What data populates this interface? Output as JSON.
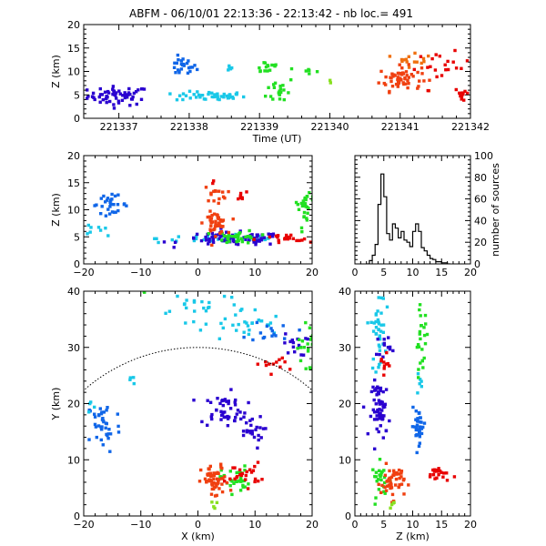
{
  "header": {
    "title": "ABFM - 06/10/01 22:13:36 - 22:13:42 - nb loc.=    491"
  },
  "colors": {
    "sequence": [
      "#2a00d0",
      "#1066e8",
      "#19c8e8",
      "#22e022",
      "#f04010",
      "#e80000"
    ],
    "frame": "#000000",
    "background": "#ffffff"
  },
  "chart_data": [
    {
      "type": "scatter",
      "name": "time-height",
      "xlabel": "Time (UT)",
      "ylabel": "Z (km)",
      "xlim": [
        221336.5,
        221342
      ],
      "ylim": [
        0,
        20
      ],
      "xticks": [
        221337,
        221338,
        221339,
        221340,
        221341,
        221342
      ],
      "yticks": [
        0,
        5,
        10,
        15,
        20
      ],
      "xtick_labels": [
        "221337",
        "221338",
        "221339",
        "221340",
        "221341",
        "221342"
      ],
      "ytick_labels": [
        "0",
        "5",
        "10",
        "15",
        "20"
      ],
      "clusters": [
        {
          "color": "#2a00d0",
          "x": 221337.0,
          "y": 4.8,
          "sx": 0.22,
          "sy": 1.0,
          "n": 60
        },
        {
          "color": "#1066e8",
          "x": 221337.9,
          "y": 11.0,
          "sx": 0.1,
          "sy": 1.0,
          "n": 25
        },
        {
          "color": "#19c8e8",
          "x": 221338.3,
          "y": 4.7,
          "sx": 0.25,
          "sy": 0.5,
          "n": 45
        },
        {
          "color": "#19c8e8",
          "x": 221338.55,
          "y": 11.0,
          "sx": 0.05,
          "sy": 0.4,
          "n": 5
        },
        {
          "color": "#22e022",
          "x": 221339.1,
          "y": 11.0,
          "sx": 0.1,
          "sy": 0.8,
          "n": 15
        },
        {
          "color": "#22e022",
          "x": 221339.3,
          "y": 6.0,
          "sx": 0.1,
          "sy": 1.5,
          "n": 20
        },
        {
          "color": "#22e022",
          "x": 221339.7,
          "y": 10.0,
          "sx": 0.07,
          "sy": 0.5,
          "n": 6
        },
        {
          "color": "#88e020",
          "x": 221340.0,
          "y": 8.0,
          "sx": 0.01,
          "sy": 0.2,
          "n": 2
        },
        {
          "color": "#f04010",
          "x": 221341.0,
          "y": 8.5,
          "sx": 0.15,
          "sy": 1.3,
          "n": 60
        },
        {
          "color": "#f07010",
          "x": 221341.2,
          "y": 13.0,
          "sx": 0.12,
          "sy": 1.0,
          "n": 15
        },
        {
          "color": "#e80000",
          "x": 221341.6,
          "y": 11.0,
          "sx": 0.2,
          "sy": 1.5,
          "n": 20
        },
        {
          "color": "#e80000",
          "x": 221341.9,
          "y": 5.0,
          "sx": 0.06,
          "sy": 0.9,
          "n": 10
        }
      ]
    },
    {
      "type": "scatter",
      "name": "x-z",
      "xlabel": "",
      "ylabel": "Z (km)",
      "xlim": [
        -20,
        20
      ],
      "ylim": [
        0,
        20
      ],
      "xticks": [
        -20,
        -10,
        0,
        10,
        20
      ],
      "yticks": [
        0,
        5,
        10,
        15,
        20
      ],
      "xtick_labels": [
        "−20",
        "−10",
        "0",
        "10",
        "20"
      ],
      "ytick_labels": [
        "0",
        "5",
        "10",
        "15",
        "20"
      ],
      "clusters": [
        {
          "color": "#1066e8",
          "x": -15.5,
          "y": 11.0,
          "sx": 1.6,
          "sy": 0.8,
          "n": 30
        },
        {
          "color": "#19c8e8",
          "x": -18.0,
          "y": 6.5,
          "sx": 1.0,
          "sy": 0.5,
          "n": 8
        },
        {
          "color": "#19c8e8",
          "x": 5.0,
          "y": 4.7,
          "sx": 6.0,
          "sy": 0.4,
          "n": 45
        },
        {
          "color": "#2a00d0",
          "x": 6.0,
          "y": 4.6,
          "sx": 4.5,
          "sy": 0.6,
          "n": 80
        },
        {
          "color": "#22e022",
          "x": 7.0,
          "y": 5.0,
          "sx": 1.8,
          "sy": 0.6,
          "n": 35
        },
        {
          "color": "#22e022",
          "x": 19.0,
          "y": 11.5,
          "sx": 0.8,
          "sy": 0.7,
          "n": 20
        },
        {
          "color": "#22e022",
          "x": 19.0,
          "y": 8.0,
          "sx": 0.6,
          "sy": 1.0,
          "n": 8
        },
        {
          "color": "#f04010",
          "x": 3.0,
          "y": 7.5,
          "sx": 1.0,
          "sy": 1.0,
          "n": 45
        },
        {
          "color": "#f04010",
          "x": 3.0,
          "y": 13.0,
          "sx": 1.0,
          "sy": 0.8,
          "n": 15
        },
        {
          "color": "#e80000",
          "x": 7.5,
          "y": 12.5,
          "sx": 0.5,
          "sy": 0.4,
          "n": 8
        },
        {
          "color": "#e80000",
          "x": 15.0,
          "y": 4.5,
          "sx": 2.5,
          "sy": 0.5,
          "n": 20
        },
        {
          "color": "#e80000",
          "x": 3.0,
          "y": 15.0,
          "sx": 0.2,
          "sy": 0.3,
          "n": 2
        }
      ]
    },
    {
      "type": "line",
      "name": "altitude-histogram",
      "xlabel": "",
      "ylabel": "number of sources",
      "xlim": [
        0,
        20
      ],
      "ylim": [
        0,
        100
      ],
      "xticks": [
        0,
        5,
        10,
        15,
        20
      ],
      "yticks": [
        0,
        20,
        40,
        60,
        80,
        100
      ],
      "xtick_labels": [
        "0",
        "5",
        "10",
        "15",
        "20"
      ],
      "ytick_labels": [
        "0",
        "20",
        "40",
        "60",
        "80",
        "100"
      ],
      "x": [
        2,
        2.5,
        3,
        3.5,
        4,
        4.5,
        5,
        5.5,
        6,
        6.5,
        7,
        7.5,
        8,
        8.5,
        9,
        9.5,
        10,
        10.5,
        11,
        11.5,
        12,
        12.5,
        13,
        13.5,
        14,
        14.5,
        15,
        15.5,
        16
      ],
      "values": [
        0,
        3,
        8,
        18,
        55,
        83,
        62,
        28,
        22,
        37,
        33,
        24,
        30,
        22,
        20,
        16,
        30,
        37,
        30,
        15,
        12,
        8,
        5,
        4,
        2,
        2,
        1,
        1,
        0
      ]
    },
    {
      "type": "scatter",
      "name": "x-y",
      "xlabel": "X (km)",
      "ylabel": "Y (km)",
      "xlim": [
        -20,
        20
      ],
      "ylim": [
        0,
        40
      ],
      "xticks": [
        -20,
        -10,
        0,
        10,
        20
      ],
      "yticks": [
        0,
        10,
        20,
        30,
        40
      ],
      "xtick_labels": [
        "−20",
        "−10",
        "0",
        "10",
        "20"
      ],
      "ytick_labels": [
        "0",
        "10",
        "20",
        "30",
        "40"
      ],
      "range_circle": {
        "center_x": 0,
        "center_y": 0,
        "radius": 30
      },
      "clusters": [
        {
          "color": "#1066e8",
          "x": -16.5,
          "y": 16.0,
          "sx": 1.5,
          "sy": 2.5,
          "n": 40
        },
        {
          "color": "#19c8e8",
          "x": -19.0,
          "y": 20.0,
          "sx": 0.4,
          "sy": 1.0,
          "n": 4
        },
        {
          "color": "#19c8e8",
          "x": -11.5,
          "y": 24.0,
          "sx": 0.6,
          "sy": 0.8,
          "n": 4
        },
        {
          "color": "#19c8e8",
          "x": 0.0,
          "y": 38.0,
          "sx": 4.0,
          "sy": 1.2,
          "n": 20
        },
        {
          "color": "#19c8e8",
          "x": 8.0,
          "y": 34.0,
          "sx": 3.5,
          "sy": 1.5,
          "n": 30
        },
        {
          "color": "#1066e8",
          "x": 13.0,
          "y": 33.0,
          "sx": 2.0,
          "sy": 1.0,
          "n": 15
        },
        {
          "color": "#2a00d0",
          "x": 4.5,
          "y": 19.0,
          "sx": 2.0,
          "sy": 1.5,
          "n": 45
        },
        {
          "color": "#2a00d0",
          "x": 9.0,
          "y": 15.0,
          "sx": 1.2,
          "sy": 1.5,
          "n": 25
        },
        {
          "color": "#2a00d0",
          "x": 17.0,
          "y": 30.5,
          "sx": 1.0,
          "sy": 1.0,
          "n": 15
        },
        {
          "color": "#22e022",
          "x": 19.0,
          "y": 30.0,
          "sx": 0.8,
          "sy": 2.5,
          "n": 20
        },
        {
          "color": "#22e022",
          "x": 6.5,
          "y": 6.5,
          "sx": 1.2,
          "sy": 1.2,
          "n": 30
        },
        {
          "color": "#22e022",
          "x": -9.5,
          "y": 40.0,
          "sx": 0.2,
          "sy": 0.2,
          "n": 2
        },
        {
          "color": "#f04010",
          "x": 3.0,
          "y": 6.0,
          "sx": 1.2,
          "sy": 1.5,
          "n": 55
        },
        {
          "color": "#e80000",
          "x": 8.0,
          "y": 7.5,
          "sx": 1.5,
          "sy": 1.0,
          "n": 25
        },
        {
          "color": "#e80000",
          "x": 14.0,
          "y": 27.0,
          "sx": 2.0,
          "sy": 0.8,
          "n": 12
        },
        {
          "color": "#88e020",
          "x": 3.0,
          "y": 2.0,
          "sx": 0.3,
          "sy": 0.4,
          "n": 4
        }
      ]
    },
    {
      "type": "scatter",
      "name": "z-y",
      "xlabel": "Z (km)",
      "ylabel": "",
      "xlim": [
        0,
        20
      ],
      "ylim": [
        0,
        40
      ],
      "xticks": [
        0,
        5,
        10,
        15,
        20
      ],
      "yticks": [
        0,
        10,
        20,
        30,
        40
      ],
      "xtick_labels": [
        "0",
        "5",
        "10",
        "15",
        "20"
      ],
      "ytick_labels": [
        "0",
        "10",
        "20",
        "30",
        "40"
      ],
      "clusters": [
        {
          "color": "#19c8e8",
          "x": 4.0,
          "y": 33.0,
          "sx": 0.6,
          "sy": 3.5,
          "n": 40
        },
        {
          "color": "#1066e8",
          "x": 11.0,
          "y": 16.0,
          "sx": 0.6,
          "sy": 1.5,
          "n": 35
        },
        {
          "color": "#19c8e8",
          "x": 11.0,
          "y": 24.0,
          "sx": 0.3,
          "sy": 0.8,
          "n": 6
        },
        {
          "color": "#2a00d0",
          "x": 4.5,
          "y": 19.0,
          "sx": 0.8,
          "sy": 2.5,
          "n": 60
        },
        {
          "color": "#2a00d0",
          "x": 5.0,
          "y": 30.5,
          "sx": 0.6,
          "sy": 1.0,
          "n": 12
        },
        {
          "color": "#22e022",
          "x": 11.5,
          "y": 31.0,
          "sx": 0.6,
          "sy": 3.0,
          "n": 25
        },
        {
          "color": "#22e022",
          "x": 4.5,
          "y": 6.5,
          "sx": 0.8,
          "sy": 1.5,
          "n": 25
        },
        {
          "color": "#f04010",
          "x": 6.5,
          "y": 6.0,
          "sx": 1.0,
          "sy": 1.5,
          "n": 50
        },
        {
          "color": "#e80000",
          "x": 14.5,
          "y": 7.5,
          "sx": 1.0,
          "sy": 0.7,
          "n": 20
        },
        {
          "color": "#e80000",
          "x": 5.0,
          "y": 27.0,
          "sx": 0.4,
          "sy": 0.8,
          "n": 10
        },
        {
          "color": "#88e020",
          "x": 6.5,
          "y": 2.0,
          "sx": 0.3,
          "sy": 0.4,
          "n": 4
        }
      ]
    }
  ]
}
